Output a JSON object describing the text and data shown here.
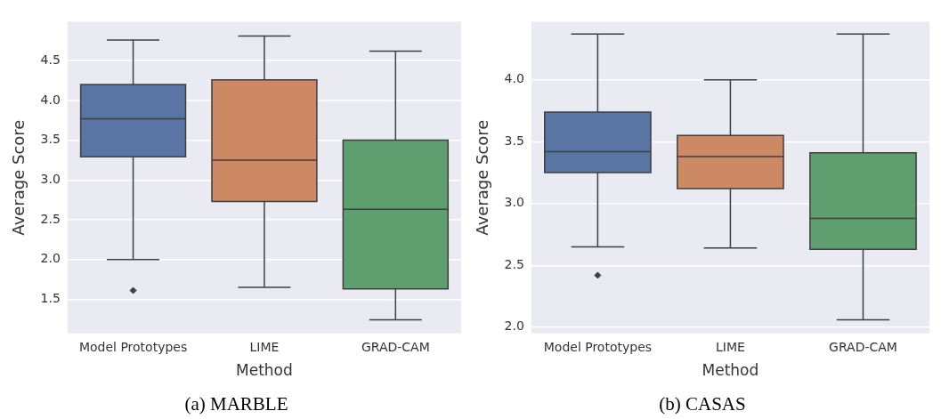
{
  "chart_data": [
    {
      "type": "box",
      "title": "(a) MARBLE",
      "xlabel": "Method",
      "ylabel": "Average Score",
      "categories": [
        "Model Prototypes",
        "LIME",
        "GRAD-CAM"
      ],
      "colors": [
        "#5875a4",
        "#cd8963",
        "#5f9e6e"
      ],
      "boxes": [
        {
          "low": 2.0,
          "q1": 3.29,
          "median": 3.77,
          "q3": 4.2,
          "high": 4.76,
          "outliers": [
            1.61
          ]
        },
        {
          "low": 1.65,
          "q1": 2.73,
          "median": 3.25,
          "q3": 4.26,
          "high": 4.81
        },
        {
          "low": 1.24,
          "q1": 1.63,
          "median": 2.63,
          "q3": 3.5,
          "high": 4.62
        }
      ],
      "ylim": [
        1.07,
        4.99
      ],
      "yticks": [
        {
          "value": 1.5,
          "label": "1.5"
        },
        {
          "value": 2,
          "label": "2.0"
        },
        {
          "value": 2.5,
          "label": "2.5"
        },
        {
          "value": 3,
          "label": "3.0"
        },
        {
          "value": 3.5,
          "label": "3.5"
        },
        {
          "value": 4,
          "label": "4.0"
        },
        {
          "value": 4.5,
          "label": "4.5"
        }
      ],
      "grid": "y"
    },
    {
      "type": "box",
      "title": "(b) CASAS",
      "xlabel": "Method",
      "ylabel": "Average Score",
      "categories": [
        "Model Prototypes",
        "LIME",
        "GRAD-CAM"
      ],
      "colors": [
        "#5875a4",
        "#cd8963",
        "#5f9e6e"
      ],
      "boxes": [
        {
          "low": 2.65,
          "q1": 3.25,
          "median": 3.42,
          "q3": 3.74,
          "high": 4.37,
          "outliers": [
            2.42
          ]
        },
        {
          "low": 2.64,
          "q1": 3.12,
          "median": 3.38,
          "q3": 3.55,
          "high": 4.0
        },
        {
          "low": 2.06,
          "q1": 2.63,
          "median": 2.88,
          "q3": 3.41,
          "high": 4.37
        }
      ],
      "ylim": [
        1.95,
        4.47
      ],
      "yticks": [
        {
          "value": 2,
          "label": "2.0"
        },
        {
          "value": 2.5,
          "label": "2.5"
        },
        {
          "value": 3,
          "label": "3.0"
        },
        {
          "value": 3.5,
          "label": "3.5"
        },
        {
          "value": 4,
          "label": "4.0"
        }
      ],
      "grid": "y"
    }
  ]
}
